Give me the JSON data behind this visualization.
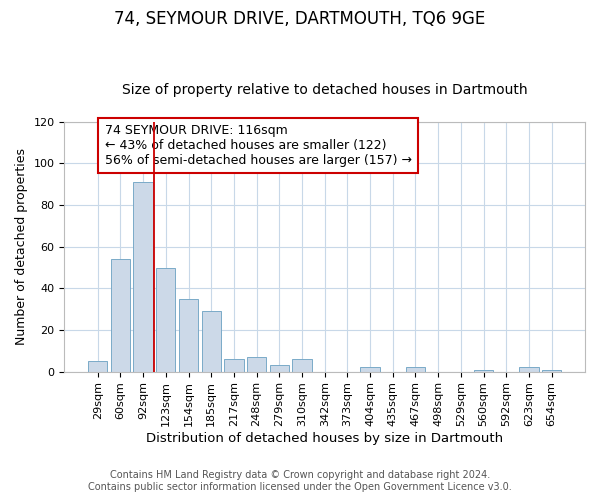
{
  "title": "74, SEYMOUR DRIVE, DARTMOUTH, TQ6 9GE",
  "subtitle": "Size of property relative to detached houses in Dartmouth",
  "xlabel": "Distribution of detached houses by size in Dartmouth",
  "ylabel": "Number of detached properties",
  "bar_labels": [
    "29sqm",
    "60sqm",
    "92sqm",
    "123sqm",
    "154sqm",
    "185sqm",
    "217sqm",
    "248sqm",
    "279sqm",
    "310sqm",
    "342sqm",
    "373sqm",
    "404sqm",
    "435sqm",
    "467sqm",
    "498sqm",
    "529sqm",
    "560sqm",
    "592sqm",
    "623sqm",
    "654sqm"
  ],
  "bar_heights": [
    5,
    54,
    91,
    50,
    35,
    29,
    6,
    7,
    3,
    6,
    0,
    0,
    2,
    0,
    2,
    0,
    0,
    1,
    0,
    2,
    1
  ],
  "bar_color": "#ccd9e8",
  "bar_edge_color": "#7aaac8",
  "vline_x_idx": 2,
  "vline_color": "#cc0000",
  "annotation_text": "74 SEYMOUR DRIVE: 116sqm\n← 43% of detached houses are smaller (122)\n56% of semi-detached houses are larger (157) →",
  "annotation_box_color": "#ffffff",
  "annotation_box_edge": "#cc0000",
  "ylim": [
    0,
    120
  ],
  "yticks": [
    0,
    20,
    40,
    60,
    80,
    100,
    120
  ],
  "footer_line1": "Contains HM Land Registry data © Crown copyright and database right 2024.",
  "footer_line2": "Contains public sector information licensed under the Open Government Licence v3.0.",
  "bg_color": "#ffffff",
  "plot_bg_color": "#ffffff",
  "grid_color": "#c8d8e8",
  "title_fontsize": 12,
  "subtitle_fontsize": 10,
  "xlabel_fontsize": 9.5,
  "ylabel_fontsize": 9,
  "tick_fontsize": 8,
  "footer_fontsize": 7,
  "annotation_fontsize": 9
}
